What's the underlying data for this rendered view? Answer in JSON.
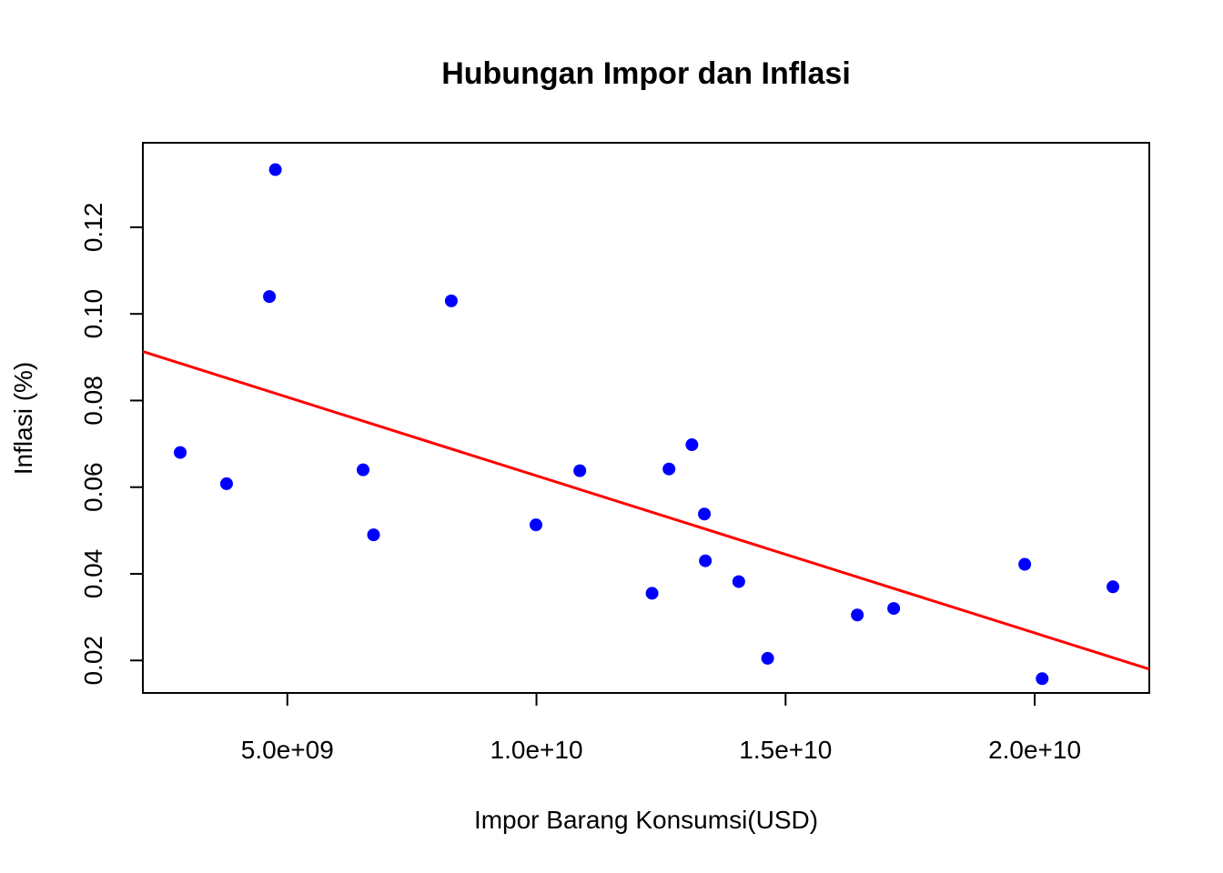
{
  "chart_data": {
    "type": "scatter",
    "title": "Hubungan Impor dan Inflasi",
    "xlabel": "Impor Barang Konsumsi(USD)",
    "ylabel": "Inflasi (%)",
    "xlim": [
      2100000000,
      22300000000
    ],
    "ylim": [
      0.0125,
      0.1395
    ],
    "x_ticks": [
      5000000000,
      10000000000,
      15000000000,
      20000000000
    ],
    "x_tick_labels": [
      "5.0e+09",
      "1.0e+10",
      "1.5e+10",
      "2.0e+10"
    ],
    "y_ticks": [
      0.02,
      0.04,
      0.06,
      0.08,
      0.1,
      0.12
    ],
    "y_tick_labels": [
      "0.02",
      "0.04",
      "0.06",
      "0.08",
      "0.10",
      "0.12"
    ],
    "grid": false,
    "legend": "none",
    "point_color": "#0000ff",
    "line_color": "#ff0000",
    "points": [
      {
        "x": 2850000000,
        "y": 0.068
      },
      {
        "x": 3780000000,
        "y": 0.0608
      },
      {
        "x": 4640000000,
        "y": 0.104
      },
      {
        "x": 4760000000,
        "y": 0.1333
      },
      {
        "x": 6520000000,
        "y": 0.064
      },
      {
        "x": 6730000000,
        "y": 0.049
      },
      {
        "x": 8290000000,
        "y": 0.103
      },
      {
        "x": 9990000000,
        "y": 0.0513
      },
      {
        "x": 10870000000,
        "y": 0.0638
      },
      {
        "x": 12320000000,
        "y": 0.0355
      },
      {
        "x": 12660000000,
        "y": 0.0642
      },
      {
        "x": 13120000000,
        "y": 0.0698
      },
      {
        "x": 13370000000,
        "y": 0.0538
      },
      {
        "x": 13390000000,
        "y": 0.043
      },
      {
        "x": 14060000000,
        "y": 0.0382
      },
      {
        "x": 14640000000,
        "y": 0.0205
      },
      {
        "x": 16440000000,
        "y": 0.0305
      },
      {
        "x": 17170000000,
        "y": 0.032
      },
      {
        "x": 19800000000,
        "y": 0.0422
      },
      {
        "x": 20150000000,
        "y": 0.0158
      },
      {
        "x": 21570000000,
        "y": 0.037
      }
    ],
    "regression_line": [
      {
        "x": 2100000000,
        "y": 0.0913
      },
      {
        "x": 22300000000,
        "y": 0.018
      }
    ]
  }
}
